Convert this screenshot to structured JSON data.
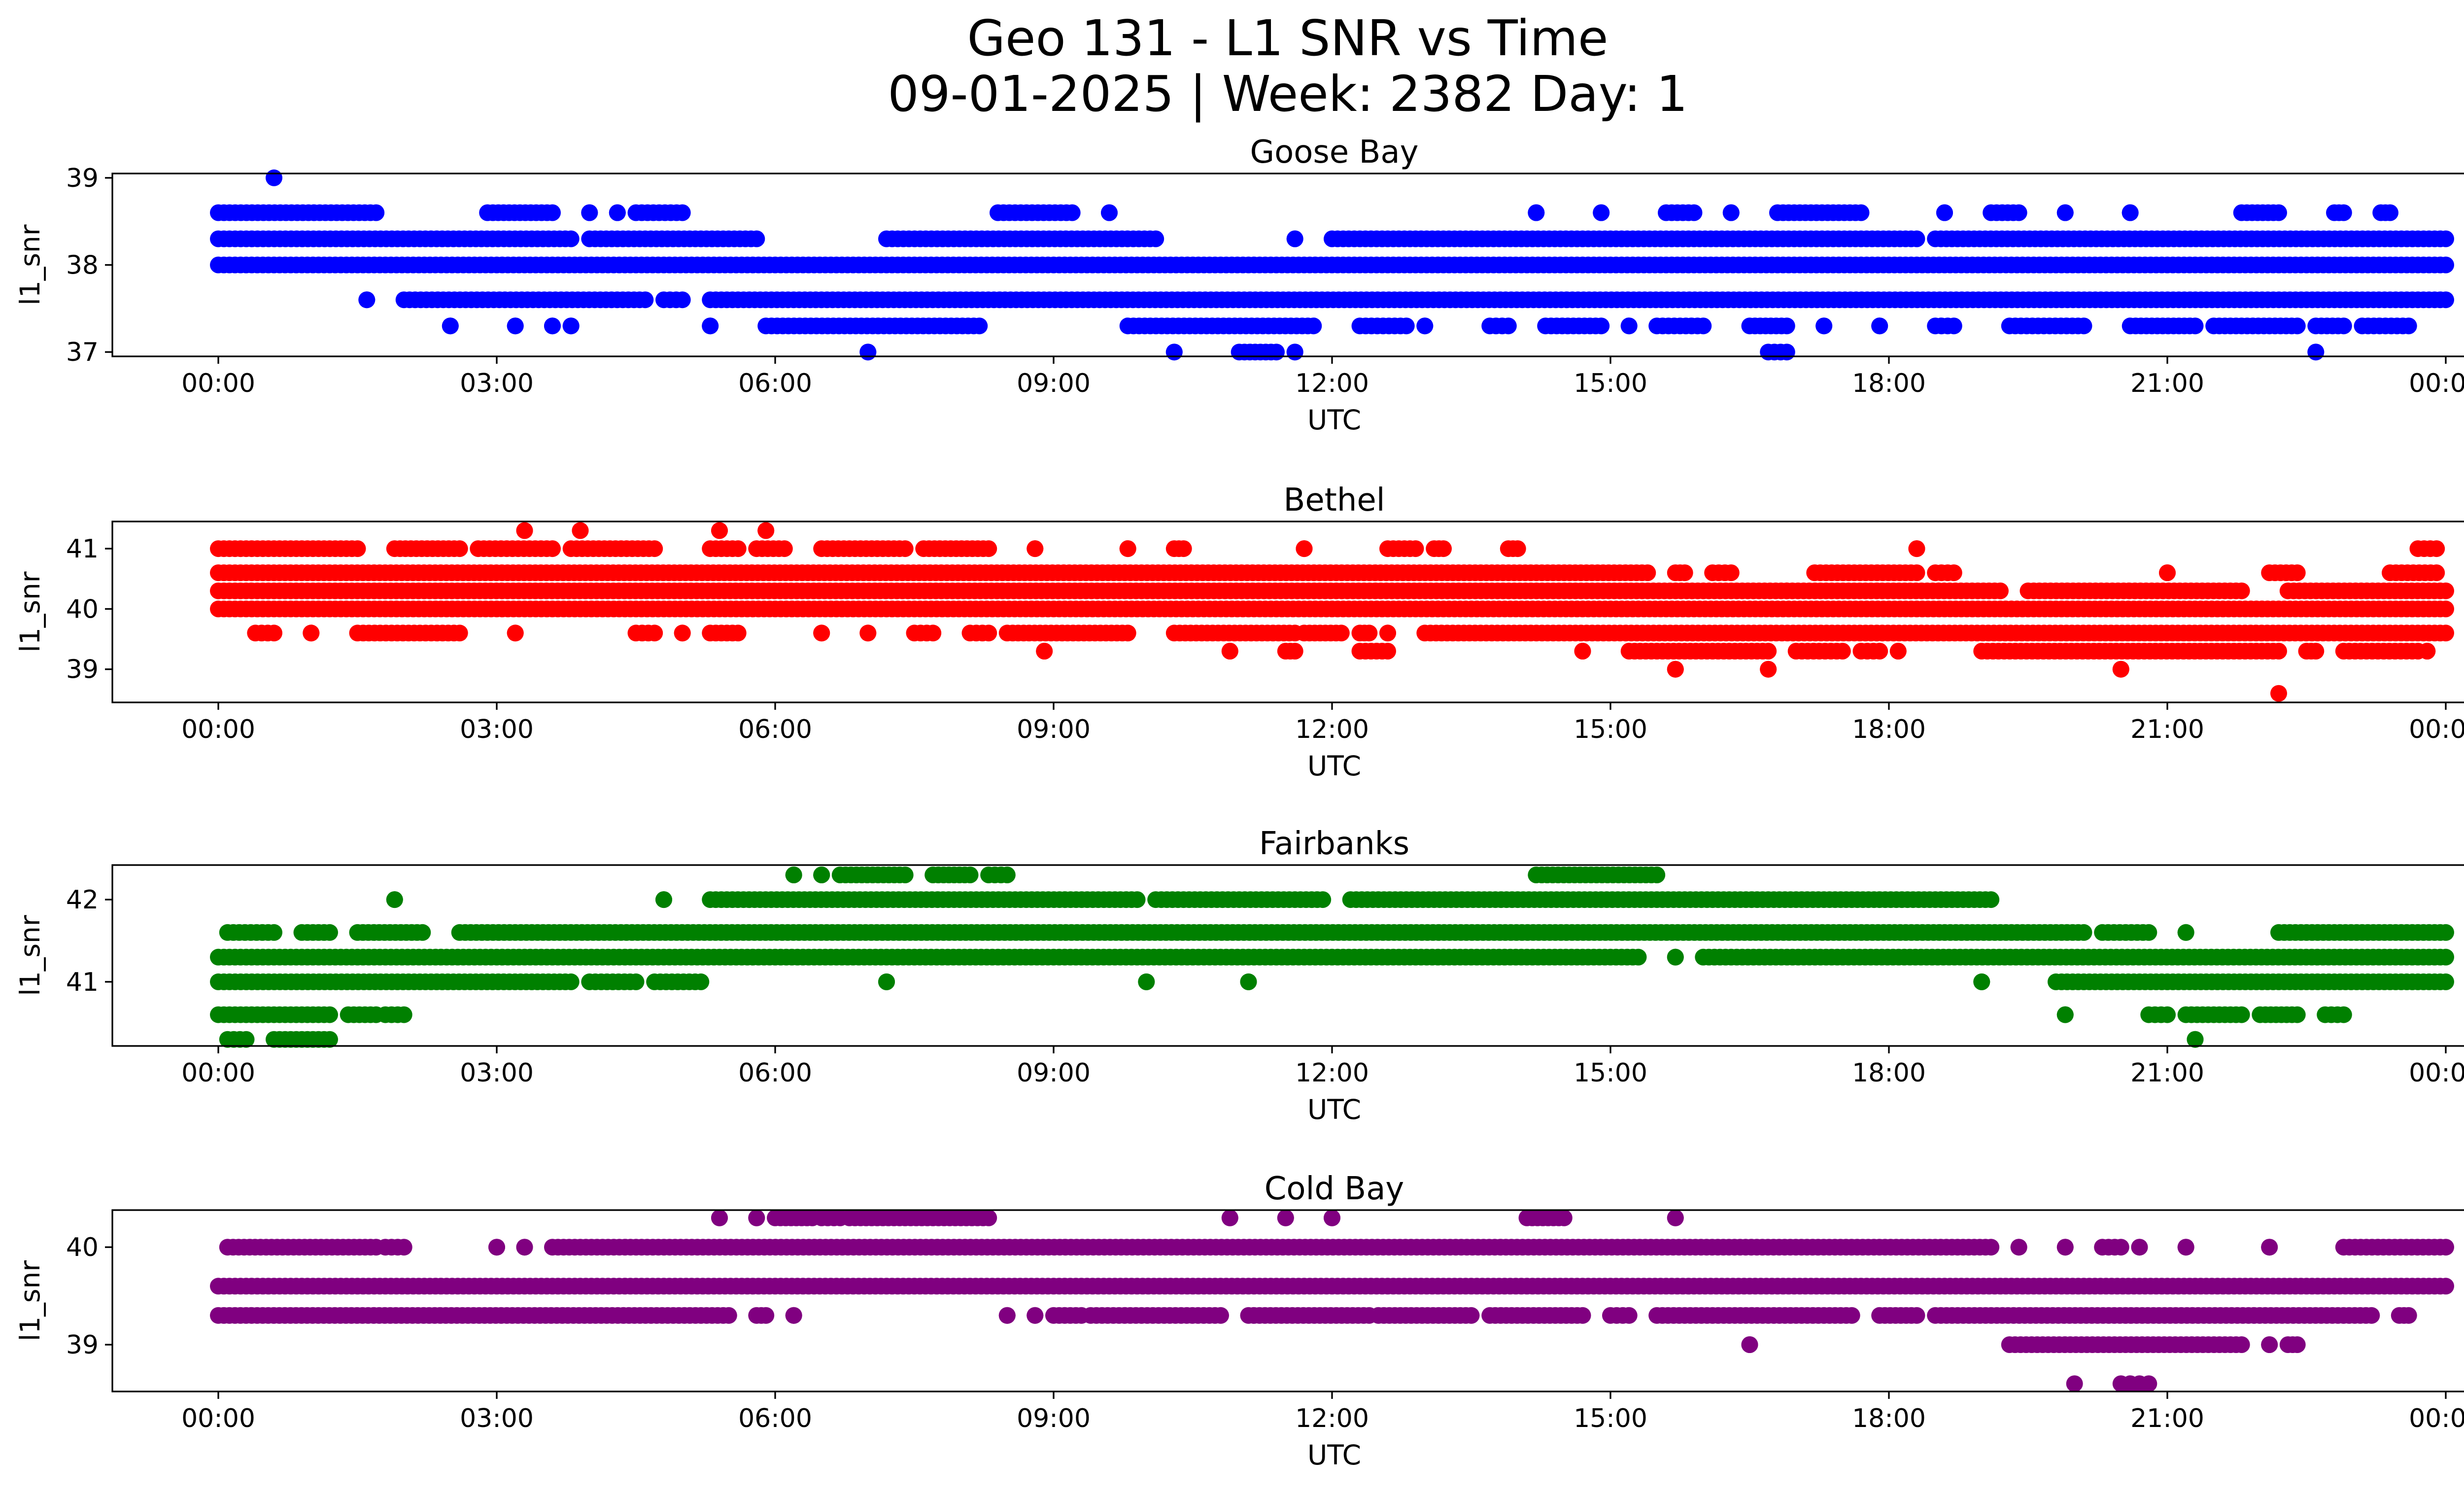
{
  "title_line1": "Geo 131 - L1 SNR vs Time",
  "title_line2": "09-01-2025 | Week: 2382 Day: 1",
  "chart_data": [
    {
      "type": "scatter",
      "title": "Goose Bay",
      "color": "#0000ff",
      "xlabel": "UTC",
      "ylabel": "l1_snr",
      "xlim_hours": [
        0,
        24
      ],
      "ylim": [
        36.95,
        39.05
      ],
      "x_ticks": [
        "00:00",
        "03:00",
        "06:00",
        "09:00",
        "12:00",
        "15:00",
        "18:00",
        "21:00",
        "00:00"
      ],
      "y_ticks": [
        37,
        38,
        39
      ],
      "levels": [
        {
          "y": 38.6,
          "segments": [
            [
              0,
              1.7
            ],
            [
              2.9,
              3.6
            ],
            [
              4.0,
              4.0
            ],
            [
              4.3,
              4.3
            ],
            [
              4.5,
              5.0
            ],
            [
              8.4,
              9.2
            ],
            [
              9.6,
              9.6
            ],
            [
              14.2,
              14.2
            ],
            [
              14.9,
              14.9
            ],
            [
              15.6,
              15.9
            ],
            [
              16.3,
              16.3
            ],
            [
              16.8,
              17.7
            ],
            [
              18.6,
              18.6
            ],
            [
              19.1,
              19.4
            ],
            [
              19.9,
              19.9
            ],
            [
              20.6,
              20.6
            ],
            [
              21.8,
              22.2
            ],
            [
              22.8,
              22.9
            ],
            [
              23.3,
              23.4
            ]
          ]
        },
        {
          "y": 38.3,
          "segments": [
            [
              0,
              3.8
            ],
            [
              4.0,
              5.8
            ],
            [
              7.2,
              10.1
            ],
            [
              11.6,
              11.6
            ],
            [
              12.0,
              18.3
            ],
            [
              18.5,
              24
            ]
          ]
        },
        {
          "y": 38.0,
          "segments": [
            [
              0,
              24
            ]
          ]
        },
        {
          "y": 37.6,
          "segments": [
            [
              1.6,
              1.6
            ],
            [
              2.0,
              4.6
            ],
            [
              4.8,
              5.0
            ],
            [
              5.3,
              24
            ]
          ]
        },
        {
          "y": 37.3,
          "segments": [
            [
              2.5,
              2.5
            ],
            [
              3.2,
              3.2
            ],
            [
              3.6,
              3.6
            ],
            [
              3.8,
              3.8
            ],
            [
              5.3,
              5.3
            ],
            [
              5.9,
              8.2
            ],
            [
              9.8,
              11.8
            ],
            [
              12.3,
              12.8
            ],
            [
              13.0,
              13.0
            ],
            [
              13.7,
              13.9
            ],
            [
              14.3,
              14.9
            ],
            [
              15.2,
              15.2
            ],
            [
              15.5,
              16.0
            ],
            [
              16.5,
              16.9
            ],
            [
              17.3,
              17.3
            ],
            [
              17.9,
              17.9
            ],
            [
              18.5,
              18.7
            ],
            [
              19.3,
              20.1
            ],
            [
              20.6,
              21.3
            ],
            [
              21.5,
              22.4
            ],
            [
              22.6,
              22.9
            ],
            [
              23.1,
              23.6
            ]
          ]
        },
        {
          "y": 37.0,
          "segments": [
            [
              7.0,
              7.0
            ],
            [
              10.3,
              10.3
            ],
            [
              11.0,
              11.4
            ],
            [
              11.6,
              11.6
            ],
            [
              16.7,
              16.9
            ],
            [
              22.6,
              22.6
            ]
          ]
        }
      ],
      "outliers": [
        [
          0.6,
          39.0
        ]
      ]
    },
    {
      "type": "scatter",
      "title": "Bethel",
      "color": "#ff0000",
      "xlabel": "UTC",
      "ylabel": "l1_snr",
      "xlim_hours": [
        0,
        24
      ],
      "ylim": [
        38.45,
        41.45
      ],
      "x_ticks": [
        "00:00",
        "03:00",
        "06:00",
        "09:00",
        "12:00",
        "15:00",
        "18:00",
        "21:00",
        "00:00"
      ],
      "y_ticks": [
        39,
        40,
        41
      ],
      "levels": [
        {
          "y": 41.3,
          "segments": [
            [
              3.3,
              3.3
            ],
            [
              3.9,
              3.9
            ],
            [
              5.4,
              5.4
            ],
            [
              5.9,
              5.9
            ]
          ]
        },
        {
          "y": 41.0,
          "segments": [
            [
              0,
              1.5
            ],
            [
              1.9,
              2.6
            ],
            [
              2.8,
              3.6
            ],
            [
              3.8,
              4.7
            ],
            [
              5.3,
              5.6
            ],
            [
              5.8,
              6.1
            ],
            [
              6.5,
              7.4
            ],
            [
              7.6,
              8.3
            ],
            [
              8.8,
              8.8
            ],
            [
              9.8,
              9.8
            ],
            [
              10.3,
              10.4
            ],
            [
              11.7,
              11.7
            ],
            [
              12.6,
              12.9
            ],
            [
              13.1,
              13.2
            ],
            [
              13.9,
              14.0
            ],
            [
              18.3,
              18.3
            ],
            [
              23.7,
              23.9
            ]
          ]
        },
        {
          "y": 40.6,
          "segments": [
            [
              0,
              15.4
            ],
            [
              15.7,
              15.8
            ],
            [
              16.1,
              16.3
            ],
            [
              17.2,
              18.3
            ],
            [
              18.5,
              18.7
            ],
            [
              21.0,
              21.0
            ],
            [
              22.1,
              22.4
            ],
            [
              23.4,
              23.9
            ]
          ]
        },
        {
          "y": 40.3,
          "segments": [
            [
              0,
              16.9
            ],
            [
              16.9,
              19.2
            ],
            [
              19.5,
              21.8
            ],
            [
              22.3,
              24
            ]
          ]
        },
        {
          "y": 40.0,
          "segments": [
            [
              0,
              24
            ]
          ]
        },
        {
          "y": 39.6,
          "segments": [
            [
              0.4,
              0.6
            ],
            [
              1.0,
              1.0
            ],
            [
              1.5,
              2.6
            ],
            [
              3.2,
              3.2
            ],
            [
              4.5,
              4.7
            ],
            [
              5.0,
              5.0
            ],
            [
              5.3,
              5.6
            ],
            [
              6.5,
              6.5
            ],
            [
              7.0,
              7.0
            ],
            [
              7.5,
              7.7
            ],
            [
              8.1,
              8.3
            ],
            [
              8.5,
              9.8
            ],
            [
              10.3,
              11.6
            ],
            [
              11.7,
              12.1
            ],
            [
              12.3,
              12.4
            ],
            [
              12.6,
              12.6
            ],
            [
              13.0,
              24
            ]
          ]
        },
        {
          "y": 39.3,
          "segments": [
            [
              8.9,
              8.9
            ],
            [
              10.9,
              10.9
            ],
            [
              11.5,
              11.6
            ],
            [
              12.3,
              12.6
            ],
            [
              14.7,
              14.7
            ],
            [
              15.2,
              16.7
            ],
            [
              17.0,
              17.5
            ],
            [
              17.7,
              17.9
            ],
            [
              18.1,
              18.1
            ],
            [
              19.0,
              22.2
            ],
            [
              22.5,
              22.6
            ],
            [
              22.9,
              23.7
            ],
            [
              23.8,
              23.8
            ]
          ]
        },
        {
          "y": 39.0,
          "segments": [
            [
              15.7,
              15.7
            ],
            [
              16.7,
              16.7
            ],
            [
              20.5,
              20.5
            ]
          ]
        }
      ],
      "outliers": [
        [
          22.2,
          38.6
        ]
      ]
    },
    {
      "type": "scatter",
      "title": "Fairbanks",
      "color": "#008000",
      "xlabel": "UTC",
      "ylabel": "l1_snr",
      "xlim_hours": [
        0,
        24
      ],
      "ylim": [
        40.22,
        42.42
      ],
      "x_ticks": [
        "00:00",
        "03:00",
        "06:00",
        "09:00",
        "12:00",
        "15:00",
        "18:00",
        "21:00",
        "00:00"
      ],
      "y_ticks": [
        41,
        42
      ],
      "levels": [
        {
          "y": 42.3,
          "segments": [
            [
              6.2,
              6.2
            ],
            [
              6.5,
              6.5
            ],
            [
              6.7,
              7.4
            ],
            [
              7.7,
              8.1
            ],
            [
              8.3,
              8.5
            ],
            [
              14.2,
              15.5
            ]
          ]
        },
        {
          "y": 42.0,
          "segments": [
            [
              1.9,
              1.9
            ],
            [
              4.8,
              4.8
            ],
            [
              5.3,
              9.9
            ],
            [
              10.1,
              11.9
            ],
            [
              12.2,
              19.1
            ]
          ]
        },
        {
          "y": 41.6,
          "segments": [
            [
              0.1,
              0.6
            ],
            [
              0.9,
              1.2
            ],
            [
              1.5,
              2.2
            ],
            [
              2.6,
              20.1
            ],
            [
              20.3,
              20.8
            ],
            [
              21.2,
              21.2
            ],
            [
              22.2,
              24
            ]
          ]
        },
        {
          "y": 41.3,
          "segments": [
            [
              0,
              15.3
            ],
            [
              15.7,
              15.7
            ],
            [
              16.0,
              24
            ]
          ]
        },
        {
          "y": 41.0,
          "segments": [
            [
              0,
              3.8
            ],
            [
              4.0,
              4.5
            ],
            [
              4.7,
              5.2
            ],
            [
              7.2,
              7.2
            ],
            [
              10.0,
              10.0
            ],
            [
              11.1,
              11.1
            ],
            [
              19.0,
              19.0
            ],
            [
              19.8,
              24
            ]
          ]
        },
        {
          "y": 40.6,
          "segments": [
            [
              0,
              1.2
            ],
            [
              1.4,
              1.7
            ],
            [
              1.8,
              2.0
            ],
            [
              19.9,
              19.9
            ],
            [
              20.8,
              21.0
            ],
            [
              21.2,
              21.8
            ],
            [
              22.0,
              22.4
            ],
            [
              22.7,
              22.9
            ]
          ]
        },
        {
          "y": 40.3,
          "segments": [
            [
              0.1,
              0.3
            ],
            [
              0.6,
              1.2
            ],
            [
              21.3,
              21.3
            ]
          ]
        }
      ],
      "outliers": []
    },
    {
      "type": "scatter",
      "title": "Cold Bay",
      "color": "#800080",
      "xlabel": "UTC",
      "ylabel": "l1_snr",
      "xlim_hours": [
        0,
        24
      ],
      "ylim": [
        38.52,
        40.38
      ],
      "x_ticks": [
        "00:00",
        "03:00",
        "06:00",
        "09:00",
        "12:00",
        "15:00",
        "18:00",
        "21:00",
        "00:00"
      ],
      "y_ticks": [
        39,
        40
      ],
      "levels": [
        {
          "y": 40.3,
          "segments": [
            [
              5.4,
              5.4
            ],
            [
              5.8,
              5.8
            ],
            [
              6.0,
              6.4
            ],
            [
              6.5,
              6.7
            ],
            [
              6.8,
              8.3
            ],
            [
              10.9,
              10.9
            ],
            [
              11.5,
              11.5
            ],
            [
              12.0,
              12.0
            ],
            [
              14.1,
              14.5
            ],
            [
              15.7,
              15.7
            ]
          ]
        },
        {
          "y": 40.0,
          "segments": [
            [
              0.1,
              1.7
            ],
            [
              1.8,
              2.0
            ],
            [
              3.0,
              3.0
            ],
            [
              3.3,
              3.3
            ],
            [
              3.6,
              19.1
            ],
            [
              19.4,
              19.4
            ],
            [
              19.9,
              19.9
            ],
            [
              20.3,
              20.5
            ],
            [
              20.7,
              20.7
            ],
            [
              21.2,
              21.2
            ],
            [
              22.1,
              22.1
            ],
            [
              22.9,
              24
            ]
          ]
        },
        {
          "y": 39.6,
          "segments": [
            [
              0,
              24
            ]
          ]
        },
        {
          "y": 39.3,
          "segments": [
            [
              0,
              5.5
            ],
            [
              5.8,
              5.9
            ],
            [
              6.2,
              6.2
            ],
            [
              8.5,
              8.5
            ],
            [
              8.8,
              8.8
            ],
            [
              9.0,
              9.3
            ],
            [
              9.4,
              10.8
            ],
            [
              11.1,
              12.4
            ],
            [
              12.5,
              13.5
            ],
            [
              13.7,
              14.7
            ],
            [
              15.0,
              15.2
            ],
            [
              15.5,
              17.6
            ],
            [
              17.9,
              18.3
            ],
            [
              18.5,
              23.2
            ],
            [
              23.5,
              23.6
            ]
          ]
        },
        {
          "y": 39.0,
          "segments": [
            [
              16.5,
              16.5
            ],
            [
              19.3,
              21.8
            ],
            [
              22.1,
              22.1
            ],
            [
              22.3,
              22.4
            ]
          ]
        }
      ],
      "outliers": [
        [
          20.0,
          38.6
        ],
        [
          20.5,
          38.6
        ],
        [
          20.6,
          38.6
        ],
        [
          20.7,
          38.6
        ],
        [
          20.8,
          38.6
        ]
      ]
    }
  ]
}
